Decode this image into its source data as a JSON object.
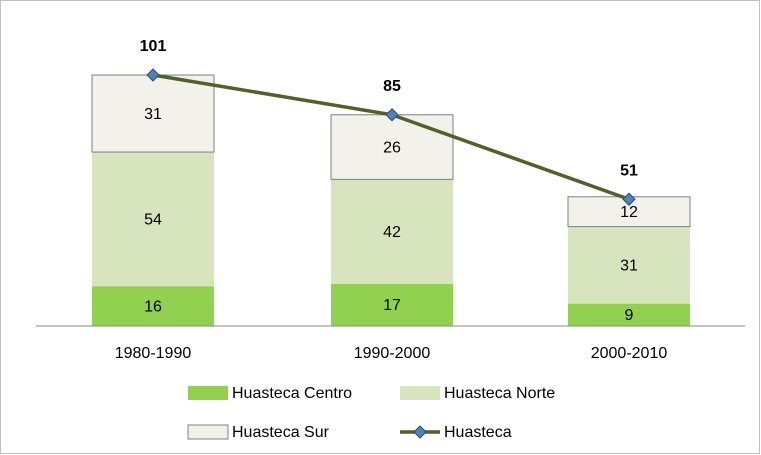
{
  "chart_data": {
    "type": "bar",
    "categories": [
      "1980-1990",
      "1990-2000",
      "2000-2010"
    ],
    "series": [
      {
        "name": "Huasteca Centro",
        "color": "#92d050",
        "values": [
          16,
          17,
          9
        ]
      },
      {
        "name": "Huasteca Norte",
        "color": "#d7e4bd",
        "values": [
          54,
          42,
          31
        ]
      },
      {
        "name": "Huasteca Sur",
        "color": "#f2f2ea",
        "values": [
          31,
          26,
          12
        ]
      },
      {
        "name": "Huasteca",
        "type": "line",
        "color": "#4f6228",
        "marker_color": "#4f81bd",
        "values": [
          101,
          85,
          51
        ]
      }
    ],
    "legend": "bottom"
  }
}
